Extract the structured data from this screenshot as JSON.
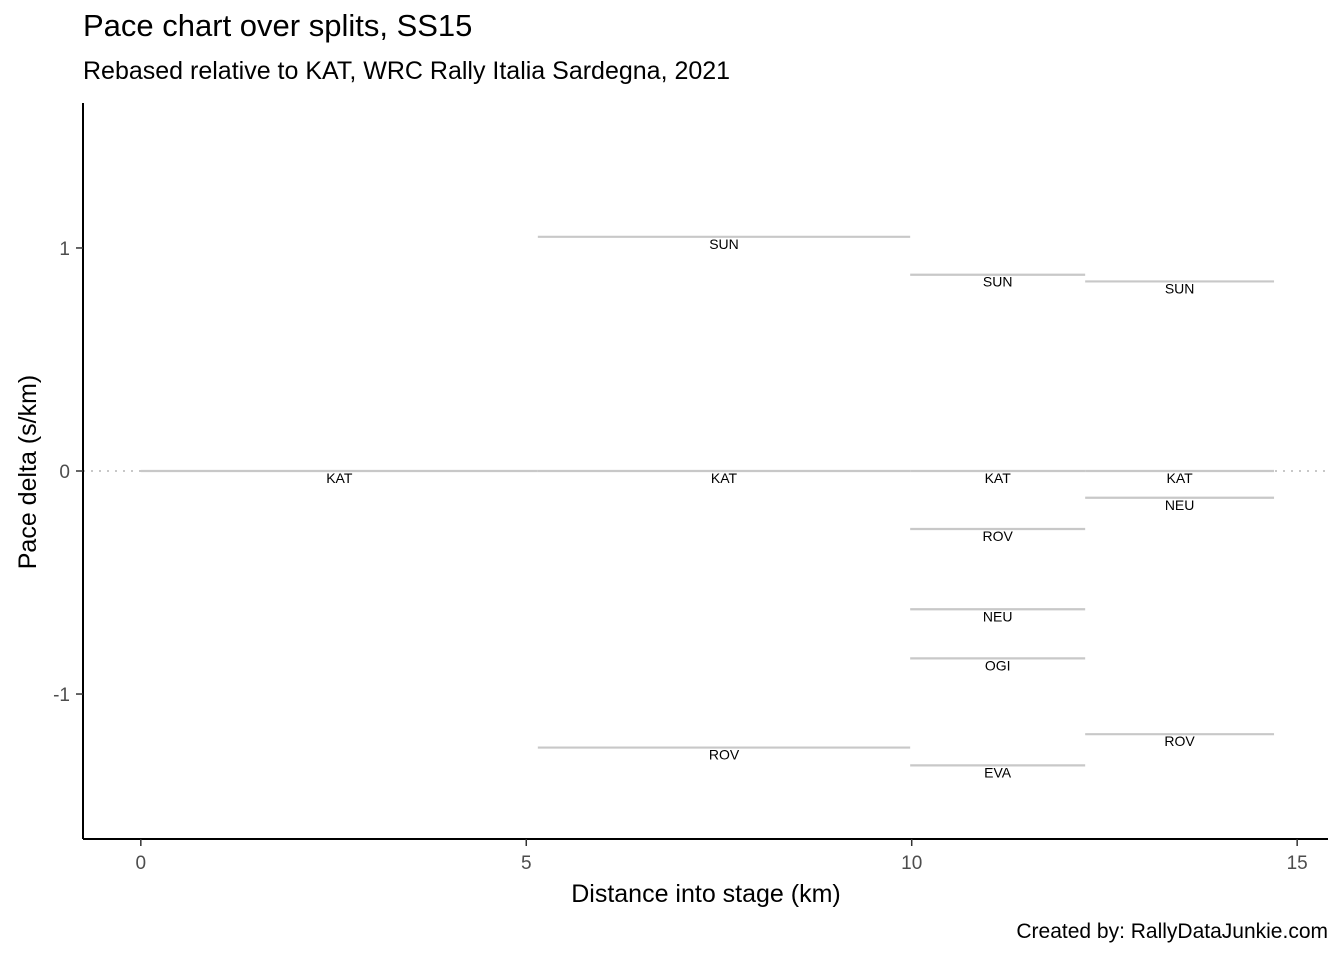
{
  "chart_data": {
    "type": "line",
    "title": "Pace chart over splits, SS15",
    "subtitle": "Rebased relative to KAT, WRC Rally Italia Sardegna, 2021",
    "caption": "Created by: RallyDataJunkie.com",
    "xlabel": "Distance into stage (km)",
    "ylabel": "Pace delta (s/km)",
    "xlim": [
      -0.75,
      15.4
    ],
    "ylim": [
      1.65,
      -1.65
    ],
    "y_reversed": true,
    "x_ticks": [
      0,
      5,
      10,
      15
    ],
    "x_tick_labels": [
      "0",
      "5",
      "10",
      "15"
    ],
    "y_ticks": [
      -1,
      0,
      1
    ],
    "y_tick_labels": [
      "-1",
      "0",
      "1"
    ],
    "reference_line": {
      "y": 0,
      "style": "dotted"
    },
    "segments": [
      {
        "label": "KAT",
        "x_start": 0.0,
        "x_end": 5.15,
        "y": 0.0
      },
      {
        "label": "KAT",
        "x_start": 5.15,
        "x_end": 9.98,
        "y": 0.0
      },
      {
        "label": "KAT",
        "x_start": 9.98,
        "x_end": 12.25,
        "y": 0.0
      },
      {
        "label": "KAT",
        "x_start": 12.25,
        "x_end": 14.7,
        "y": 0.0
      },
      {
        "label": "ROV",
        "x_start": 5.15,
        "x_end": 9.98,
        "y": -1.24
      },
      {
        "label": "SUN",
        "x_start": 5.15,
        "x_end": 9.98,
        "y": 1.05
      },
      {
        "label": "EVA",
        "x_start": 9.98,
        "x_end": 12.25,
        "y": -1.32
      },
      {
        "label": "OGI",
        "x_start": 9.98,
        "x_end": 12.25,
        "y": -0.84
      },
      {
        "label": "NEU",
        "x_start": 9.98,
        "x_end": 12.25,
        "y": -0.62
      },
      {
        "label": "ROV",
        "x_start": 9.98,
        "x_end": 12.25,
        "y": -0.26
      },
      {
        "label": "SUN",
        "x_start": 9.98,
        "x_end": 12.25,
        "y": 0.88
      },
      {
        "label": "ROV",
        "x_start": 12.25,
        "x_end": 14.7,
        "y": -1.18
      },
      {
        "label": "NEU",
        "x_start": 12.25,
        "x_end": 14.7,
        "y": -0.12
      },
      {
        "label": "SUN",
        "x_start": 12.25,
        "x_end": 14.7,
        "y": 0.85
      }
    ],
    "colors": {
      "segment": "#c8c8c8",
      "reference": "#c8c8c8",
      "axis": "#000000"
    },
    "grid": false
  }
}
